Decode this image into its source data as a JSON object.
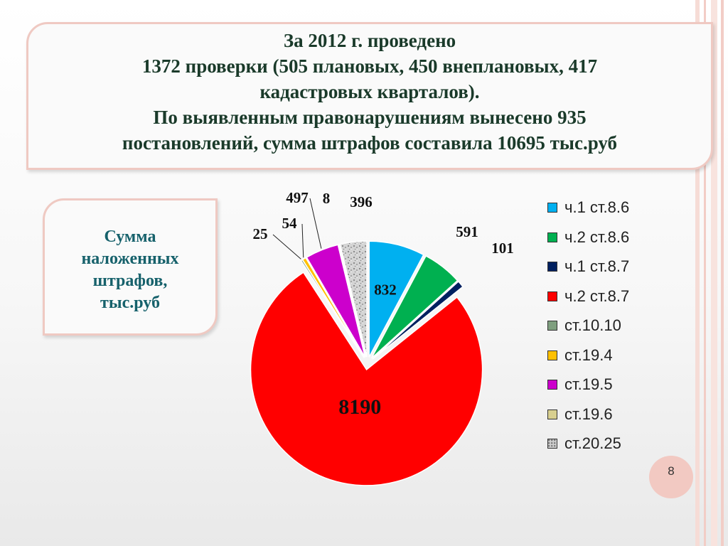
{
  "header": {
    "lines": [
      "За 2012 г. проведено",
      "1372 проверки (505 плановых, 450 внеплановых, 417",
      "кадастровых кварталов).",
      "По выявленным правонарушениям вынесено 935",
      "постановлений, сумма штрафов составила 10695 тыс.руб"
    ]
  },
  "side_caption": {
    "lines": [
      "Сумма",
      "наложенных",
      "штрафов,",
      "тыс.руб"
    ]
  },
  "page_number": "8",
  "colors": {
    "frame": "#efc9c2",
    "title_text": "#1a3a2a",
    "caption_text": "#16616b",
    "page_badge": "#f2c9c2"
  },
  "chart_data": {
    "type": "pie",
    "title": "",
    "categories": [
      "ч.1 ст.8.6",
      "ч.2 ст.8.6",
      "ч.1 ст.8.7",
      "ч.2 ст.8.7",
      "ст.10.10",
      "ст.19.4",
      "ст.19.5",
      "ст.19.6",
      "ст.20.25"
    ],
    "values": [
      832,
      591,
      101,
      8190,
      25,
      54,
      497,
      8,
      396
    ],
    "data_labels": [
      "832",
      "591",
      "101",
      "8190",
      "25",
      "54",
      "497",
      "8",
      "396"
    ],
    "colors": [
      "#00b0f0",
      "#00b050",
      "#002060",
      "#ff0000",
      "#7f9f7f",
      "#ffc000",
      "#cc00cc",
      "#d8cf8f",
      "#c9c9c9"
    ],
    "patterns": [
      "solid",
      "solid",
      "solid",
      "solid",
      "solid",
      "solid",
      "solid",
      "solid",
      "speckled"
    ],
    "exploded": true,
    "legend_position": "right"
  }
}
